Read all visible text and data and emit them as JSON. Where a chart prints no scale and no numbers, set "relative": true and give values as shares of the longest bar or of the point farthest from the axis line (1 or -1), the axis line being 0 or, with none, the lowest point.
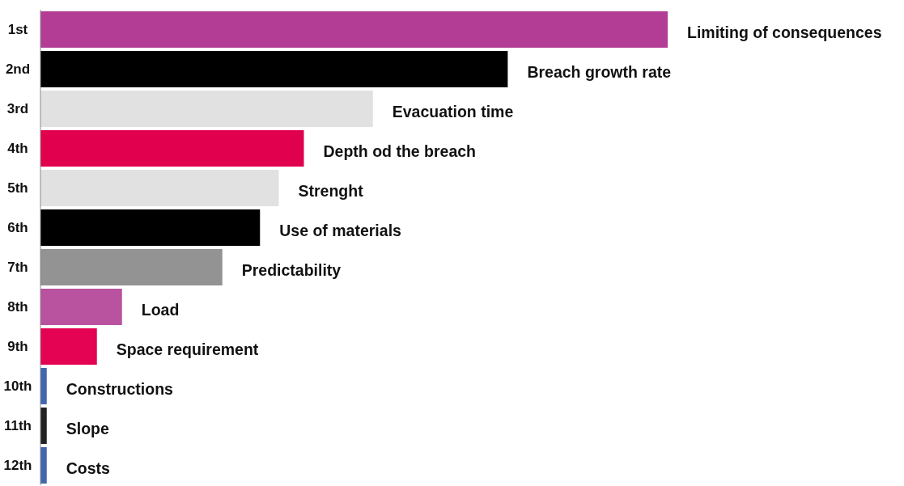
{
  "chart_data": {
    "type": "bar",
    "orientation": "horizontal",
    "relative": true,
    "categories": [
      "1st",
      "2nd",
      "3rd",
      "4th",
      "5th",
      "6th",
      "7th",
      "8th",
      "9th",
      "10th",
      "11th",
      "12th"
    ],
    "values": [
      1,
      0.745,
      0.53,
      0.42,
      0.38,
      0.35,
      0.29,
      0.13,
      0.09,
      0.01,
      0.01,
      0.01
    ],
    "colors": [
      "#b33d95",
      "#000000",
      "#e1e1e1",
      "#e0004d",
      "#e1e1e1",
      "#000000",
      "#939393",
      "#b9529f",
      "#e30352",
      "#4167ae",
      "#222222",
      "#4167ae"
    ],
    "annotations": [
      {
        "text": "Limiting of consequences",
        "x": 1,
        "y": "1st"
      },
      {
        "text": "Breach growth rate",
        "x": 0.745,
        "y": "2nd"
      },
      {
        "text": "Evacuation time",
        "x": 0.53,
        "y": "3rd"
      },
      {
        "text": "Depth od the breach",
        "x": 0.42,
        "y": "4th"
      },
      {
        "text": "Strenght",
        "x": 0.38,
        "y": "5th"
      },
      {
        "text": "Use of materials",
        "x": 0.35,
        "y": "6th"
      },
      {
        "text": "Predictability",
        "x": 0.29,
        "y": "7th"
      },
      {
        "text": "Load",
        "x": 0.13,
        "y": "8th"
      },
      {
        "text": "Space requirement",
        "x": 0.09,
        "y": "9th"
      },
      {
        "text": "Constructions",
        "x": 0.01,
        "y": "10th"
      },
      {
        "text": "Slope",
        "x": 0.01,
        "y": "11th"
      },
      {
        "text": "Costs",
        "x": 0.01,
        "y": "12th"
      }
    ]
  }
}
